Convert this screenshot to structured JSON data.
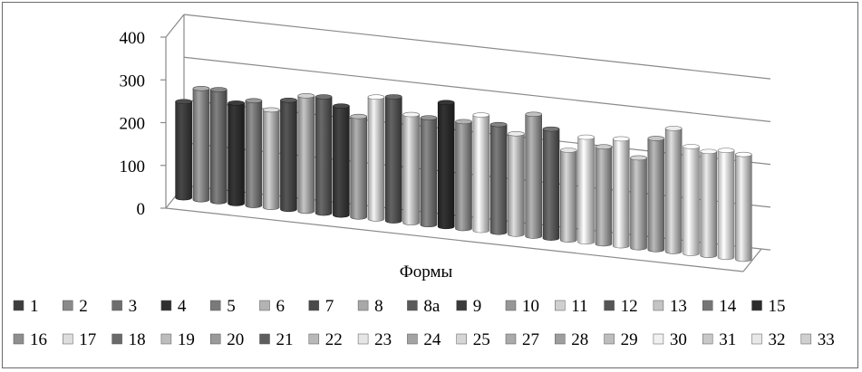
{
  "chart_data": {
    "type": "bar",
    "style": "3d-cylinder",
    "title": "",
    "xlabel": "Формы",
    "ylabel": "",
    "ylim": [
      0,
      400
    ],
    "yticks": [
      "0",
      "100",
      "200",
      "300",
      "400"
    ],
    "grid": true,
    "legend_position": "bottom",
    "categories": [
      "1",
      "2",
      "3",
      "4",
      "5",
      "6",
      "7",
      "8",
      "8a",
      "9",
      "10",
      "11",
      "12",
      "13",
      "14",
      "15",
      "16",
      "17",
      "18",
      "19",
      "20",
      "21",
      "22",
      "23",
      "24",
      "25",
      "27",
      "28",
      "29",
      "30",
      "31",
      "32",
      "33"
    ],
    "values": [
      225,
      260,
      262,
      235,
      245,
      228,
      255,
      270,
      272,
      255,
      235,
      285,
      290,
      253,
      250,
      290,
      250,
      270,
      252,
      235,
      285,
      255,
      210,
      245,
      227,
      250,
      210,
      260,
      288,
      250,
      243,
      250,
      245
    ],
    "colors": [
      "#3d3d3d",
      "#8a8a8a",
      "#6e6e6e",
      "#2f2f2f",
      "#7a7a7a",
      "#b3b3b3",
      "#4a4a4a",
      "#a8a8a8",
      "#5a5a5a",
      "#3a3a3a",
      "#979797",
      "#cfcfcf",
      "#555555",
      "#c4c4c4",
      "#767676",
      "#2b2b2b",
      "#8f8f8f",
      "#dddddd",
      "#6a6a6a",
      "#bdbdbd",
      "#9a9a9a",
      "#5e5e5e",
      "#b8b8b8",
      "#e6e6e6",
      "#a3a3a3",
      "#d6d6d6",
      "#aaaaaa",
      "#9e9e9e",
      "#bdbdbd",
      "#f0f0f0",
      "#c8c8c8",
      "#e8e8e8",
      "#cfcfcf"
    ]
  }
}
